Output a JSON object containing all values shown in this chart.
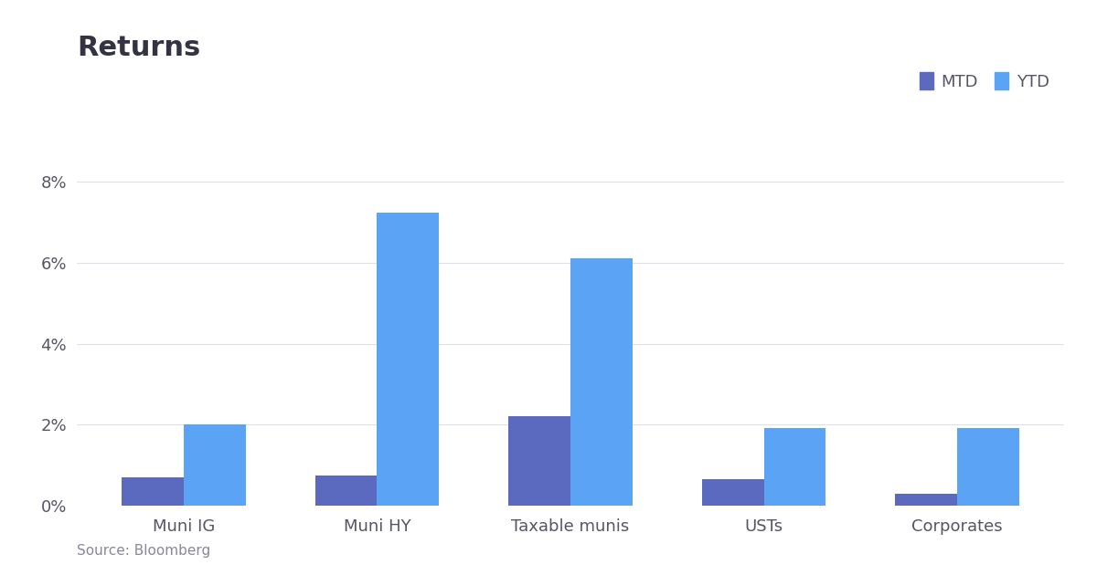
{
  "title": "Returns",
  "categories": [
    "Muni IG",
    "Muni HY",
    "Taxable munis",
    "USTs",
    "Corporates"
  ],
  "mtd_values": [
    0.7,
    0.75,
    2.22,
    0.65,
    0.3
  ],
  "ytd_values": [
    2.01,
    7.22,
    6.1,
    1.93,
    1.93
  ],
  "mtd_color": "#5b6abf",
  "ytd_color": "#5ba3f5",
  "background_color": "#ffffff",
  "grid_color": "#e0e0ea",
  "ylim": [
    0,
    8.5
  ],
  "ylim_display": [
    0,
    8
  ],
  "yticks": [
    0,
    2,
    4,
    6,
    8
  ],
  "ytick_labels": [
    "0%",
    "2%",
    "4%",
    "6%",
    "8%"
  ],
  "source_text": "Source: Bloomberg",
  "title_fontsize": 22,
  "label_fontsize": 13,
  "tick_fontsize": 13,
  "legend_fontsize": 13,
  "bar_width": 0.32,
  "legend_mtd_label": "MTD",
  "legend_ytd_label": "YTD",
  "text_color": "#333344",
  "tick_color": "#555566"
}
